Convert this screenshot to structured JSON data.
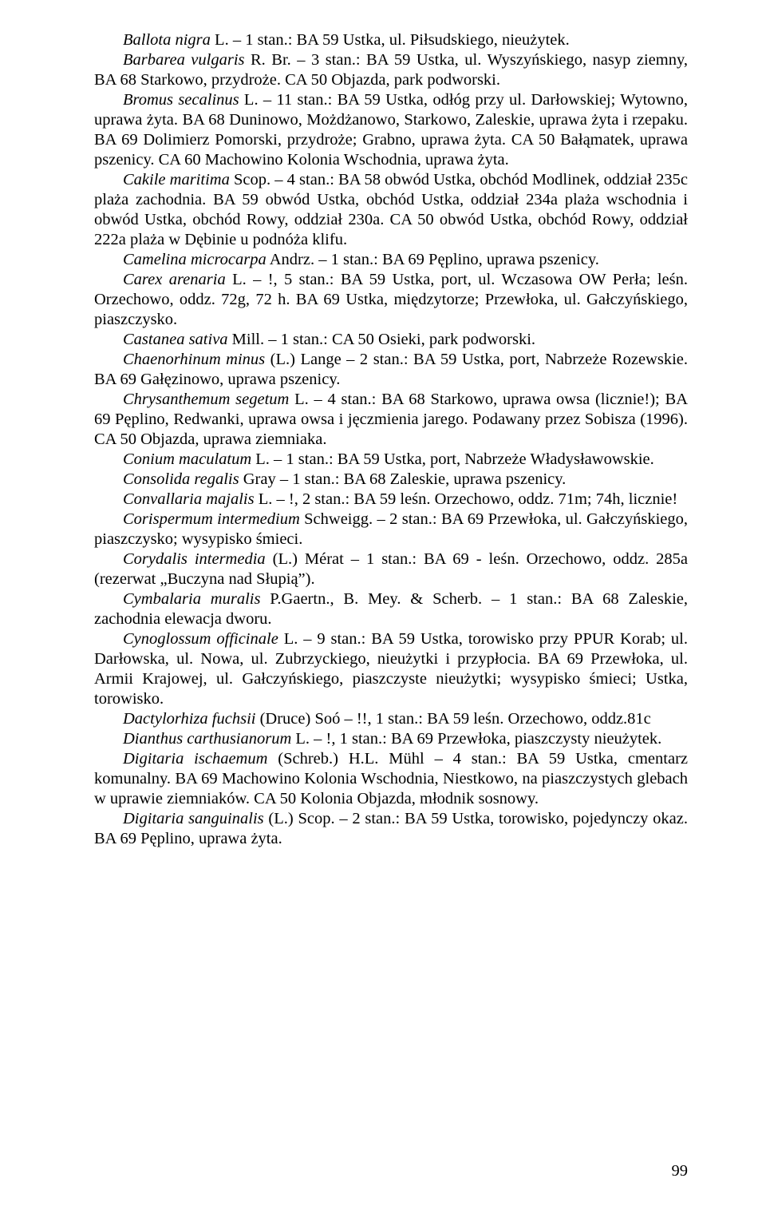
{
  "page_number": "99",
  "paragraphs": [
    {
      "id": "p1",
      "html": "<span class=\"italic\">Ballota nigra</span> L. – 1 stan.: BA 59 Ustka, ul. Piłsudskiego, nieużytek."
    },
    {
      "id": "p2",
      "html": "<span class=\"italic\">Barbarea vulgaris</span> R. Br. – 3 stan.: BA 59 Ustka, ul. Wyszyńskiego, nasyp ziemny, BA 68 Starkowo, przydroże. CA 50 Objazda, park podworski."
    },
    {
      "id": "p3",
      "html": "<span class=\"italic\">Bromus secalinus</span> L. – 11 stan.: BA 59 Ustka, odłóg przy ul. Darłowskiej; Wytowno, uprawa żyta. BA 68 Duninowo, Możdżanowo, Starkowo, Zaleskie, uprawa żyta i rzepaku. BA 69 Dolimierz Pomorski, przydroże; Grabno, uprawa żyta. CA 50 Bałąmatek, uprawa pszenicy. CA 60 Machowino Kolonia Wschodnia, uprawa żyta."
    },
    {
      "id": "p4",
      "html": "<span class=\"italic\">Cakile maritima</span> Scop. – 4 stan.: BA 58 obwód Ustka, obchód Modlinek, oddział 235c plaża zachodnia. BA 59 obwód Ustka, obchód Ustka, oddział 234a plaża wschodnia i obwód Ustka, obchód Rowy, oddział 230a. CA 50 obwód Ustka, obchód Rowy, oddział 222a plaża w Dębinie u podnóża klifu."
    },
    {
      "id": "p5",
      "html": "<span class=\"italic\">Camelina microcarpa</span> Andrz. – 1 stan.: BA 69 Pęplino, uprawa pszenicy."
    },
    {
      "id": "p6",
      "html": "<span class=\"italic\">Carex arenaria</span> L. – !, 5 stan.: BA 59 Ustka, port, ul. Wczasowa OW Perła; leśn. Orzechowo, oddz. 72g, 72 h. BA 69 Ustka, międzytorze; Przewłoka, ul. Gałczyńskiego, piaszczysko."
    },
    {
      "id": "p7",
      "html": "<span class=\"italic\">Castanea sativa</span> Mill. – 1 stan.: CA 50 Osieki, park podworski."
    },
    {
      "id": "p8",
      "html": "<span class=\"italic\">Chaenorhinum minus</span> (L.) Lange – 2 stan.: BA 59 Ustka, port, Nabrzeże Rozewskie. BA 69 Gałęzinowo, uprawa pszenicy."
    },
    {
      "id": "p9",
      "html": "<span class=\"italic\">Chrysanthemum segetum</span> L. – 4 stan.: BA 68 Starkowo, uprawa owsa (licznie!); BA 69 Pęplino, Redwanki, uprawa owsa i jęczmienia jarego. Podawany przez Sobisza (1996). CA 50 Objazda, uprawa ziemniaka."
    },
    {
      "id": "p10",
      "html": "<span class=\"italic\">Conium maculatum</span> L. – 1 stan.: BA 59 Ustka, port, Nabrzeże Władysławowskie."
    },
    {
      "id": "p11",
      "html": "<span class=\"italic\">Consolida regalis</span> Gray – 1 stan.: BA 68 Zaleskie, uprawa pszenicy."
    },
    {
      "id": "p12",
      "html": "<span class=\"italic\">Convallaria majalis</span> L. – !, 2 stan.: BA 59 leśn. Orzechowo, oddz. 71m; 74h, licznie!"
    },
    {
      "id": "p13",
      "html": "<span class=\"italic\">Corispermum intermedium</span> Schweigg. – 2 stan.: BA 69 Przewłoka, ul. Gałczyńskiego, piaszczysko; wysypisko śmieci."
    },
    {
      "id": "p14",
      "html": "<span class=\"italic\">Corydalis intermedia</span> (L.) Mérat – 1 stan.: BA 69 - leśn. Orzechowo, oddz. 285a (rezerwat „Buczyna nad Słupią”)."
    },
    {
      "id": "p15",
      "html": "<span class=\"italic\">Cymbalaria muralis</span> P.Gaertn., B. Mey. &amp; Scherb. – 1 stan.: BA 68 Zaleskie, zachodnia elewacja dworu."
    },
    {
      "id": "p16",
      "html": "<span class=\"italic\">Cynoglossum officinale</span> L. – 9 stan.: BA 59 Ustka, torowisko przy PPUR Korab; ul. Darłowska, ul. Nowa, ul. Zubrzyckiego, nieużytki i przypłocia. BA 69 Przewłoka, ul. Armii Krajowej, ul. Gałczyńskiego, piaszczyste nieużytki; wysypisko śmieci; Ustka, torowisko."
    },
    {
      "id": "p17",
      "html": "<span class=\"italic\">Dactylorhiza fuchsii</span> (Druce) Soó – !!, 1 stan.: BA 59 leśn. Orzechowo, oddz.81c"
    },
    {
      "id": "p18",
      "html": "<span class=\"italic\">Dianthus carthusianorum</span> L. – !, 1 stan.: BA 69 Przewłoka, piaszczysty nieużytek."
    },
    {
      "id": "p19",
      "html": "<span class=\"italic\">Digitaria ischaemum</span> (Schreb.) H.L. Mühl – 4 stan.: BA 59 Ustka, cmentarz komunalny. BA 69 Machowino Kolonia Wschodnia, Niestkowo, na piaszczystych glebach w uprawie ziemniaków. CA 50 Kolonia Objazda, młodnik sosnowy."
    },
    {
      "id": "p20",
      "html": "<span class=\"italic\">Digitaria sanguinalis</span> (L.) Scop. – 2 stan.: BA 59 Ustka, torowisko, pojedynczy okaz. BA 69 Pęplino, uprawa żyta."
    }
  ]
}
